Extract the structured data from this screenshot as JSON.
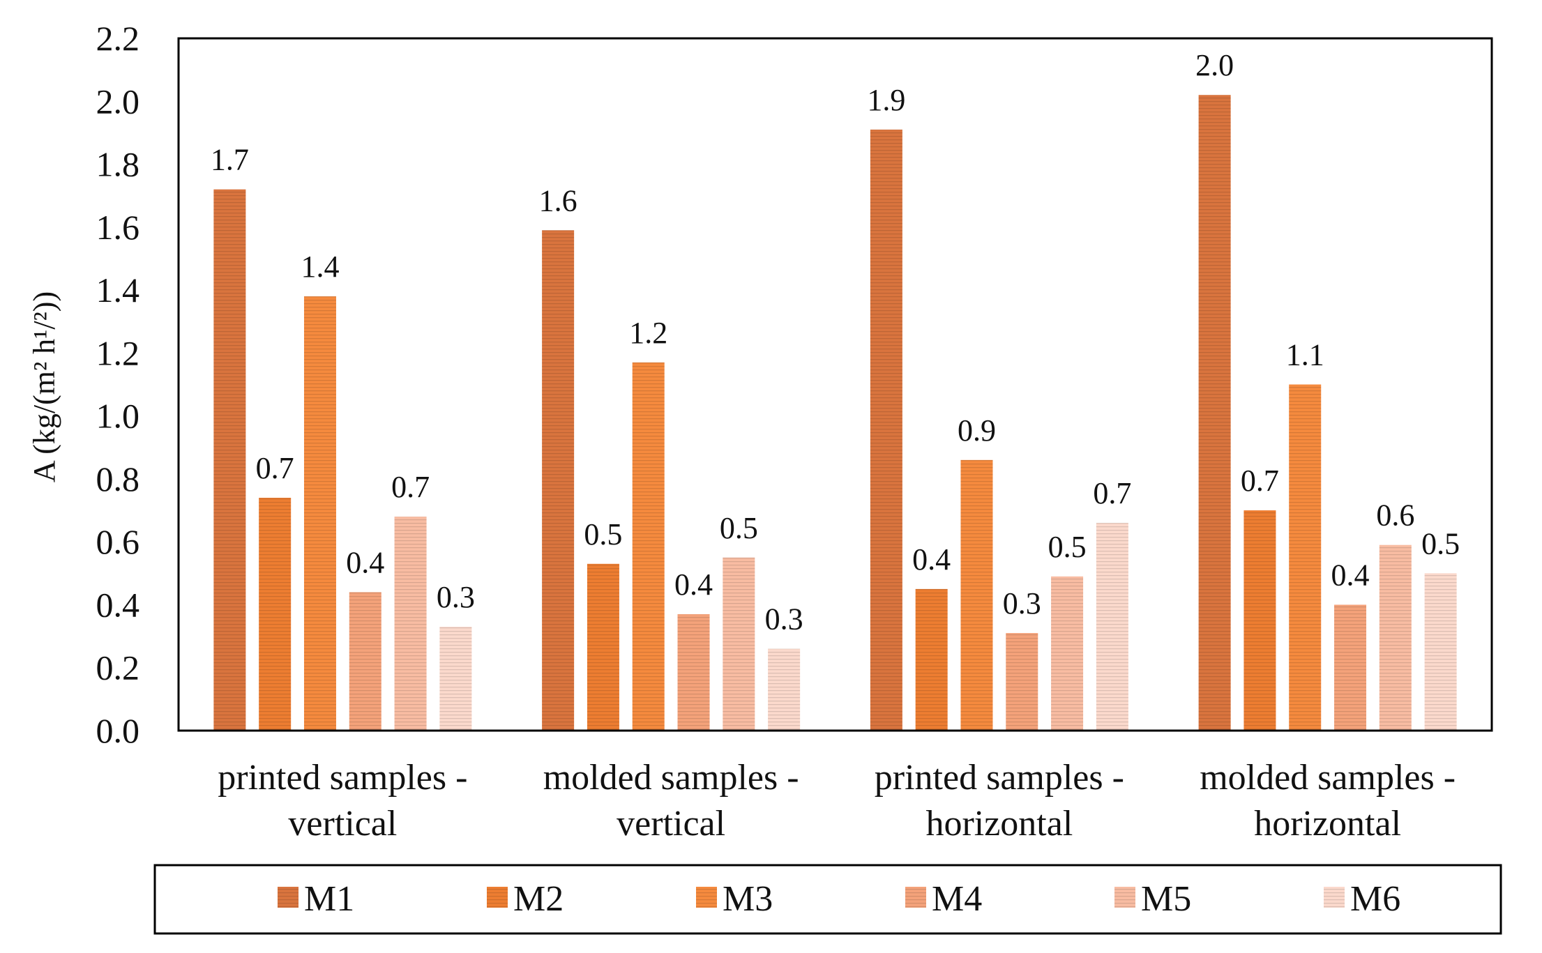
{
  "chart_data": {
    "type": "bar",
    "title": "",
    "xlabel": "",
    "ylabel": "A (kg/(m² h¹/²))",
    "ylim": [
      0,
      2.2
    ],
    "yticks": [
      "0.0",
      "0.2",
      "0.4",
      "0.6",
      "0.8",
      "1.0",
      "1.2",
      "1.4",
      "1.6",
      "1.8",
      "2.0",
      "2.2"
    ],
    "categories": [
      [
        "printed samples -",
        "vertical"
      ],
      [
        "molded samples -",
        "vertical"
      ],
      [
        "printed samples -",
        "horizontal"
      ],
      [
        "molded samples -",
        "horizontal"
      ]
    ],
    "legend_position": "bottom",
    "series": [
      {
        "name": "M1",
        "color": "#D9743E",
        "values": [
          1.72,
          1.59,
          1.91,
          2.02
        ],
        "labels": [
          "1.7",
          "1.6",
          "1.9",
          "2.0"
        ]
      },
      {
        "name": "M2",
        "color": "#ED7D31",
        "values": [
          0.74,
          0.53,
          0.45,
          0.7
        ],
        "labels": [
          "0.7",
          "0.5",
          "0.4",
          "0.7"
        ]
      },
      {
        "name": "M3",
        "color": "#F58A3E",
        "values": [
          1.38,
          1.17,
          0.86,
          1.1
        ],
        "labels": [
          "1.4",
          "1.2",
          "0.9",
          "1.1"
        ]
      },
      {
        "name": "M4",
        "color": "#F4A27A",
        "values": [
          0.44,
          0.37,
          0.31,
          0.4
        ],
        "labels": [
          "0.4",
          "0.4",
          "0.3",
          "0.4"
        ]
      },
      {
        "name": "M5",
        "color": "#F8BCA2",
        "values": [
          0.68,
          0.55,
          0.49,
          0.59
        ],
        "labels": [
          "0.7",
          "0.5",
          "0.5",
          "0.6"
        ]
      },
      {
        "name": "M6",
        "color": "#FBD9CC",
        "values": [
          0.33,
          0.26,
          0.66,
          0.5
        ],
        "labels": [
          "0.3",
          "0.3",
          "0.7",
          "0.5"
        ]
      }
    ]
  }
}
